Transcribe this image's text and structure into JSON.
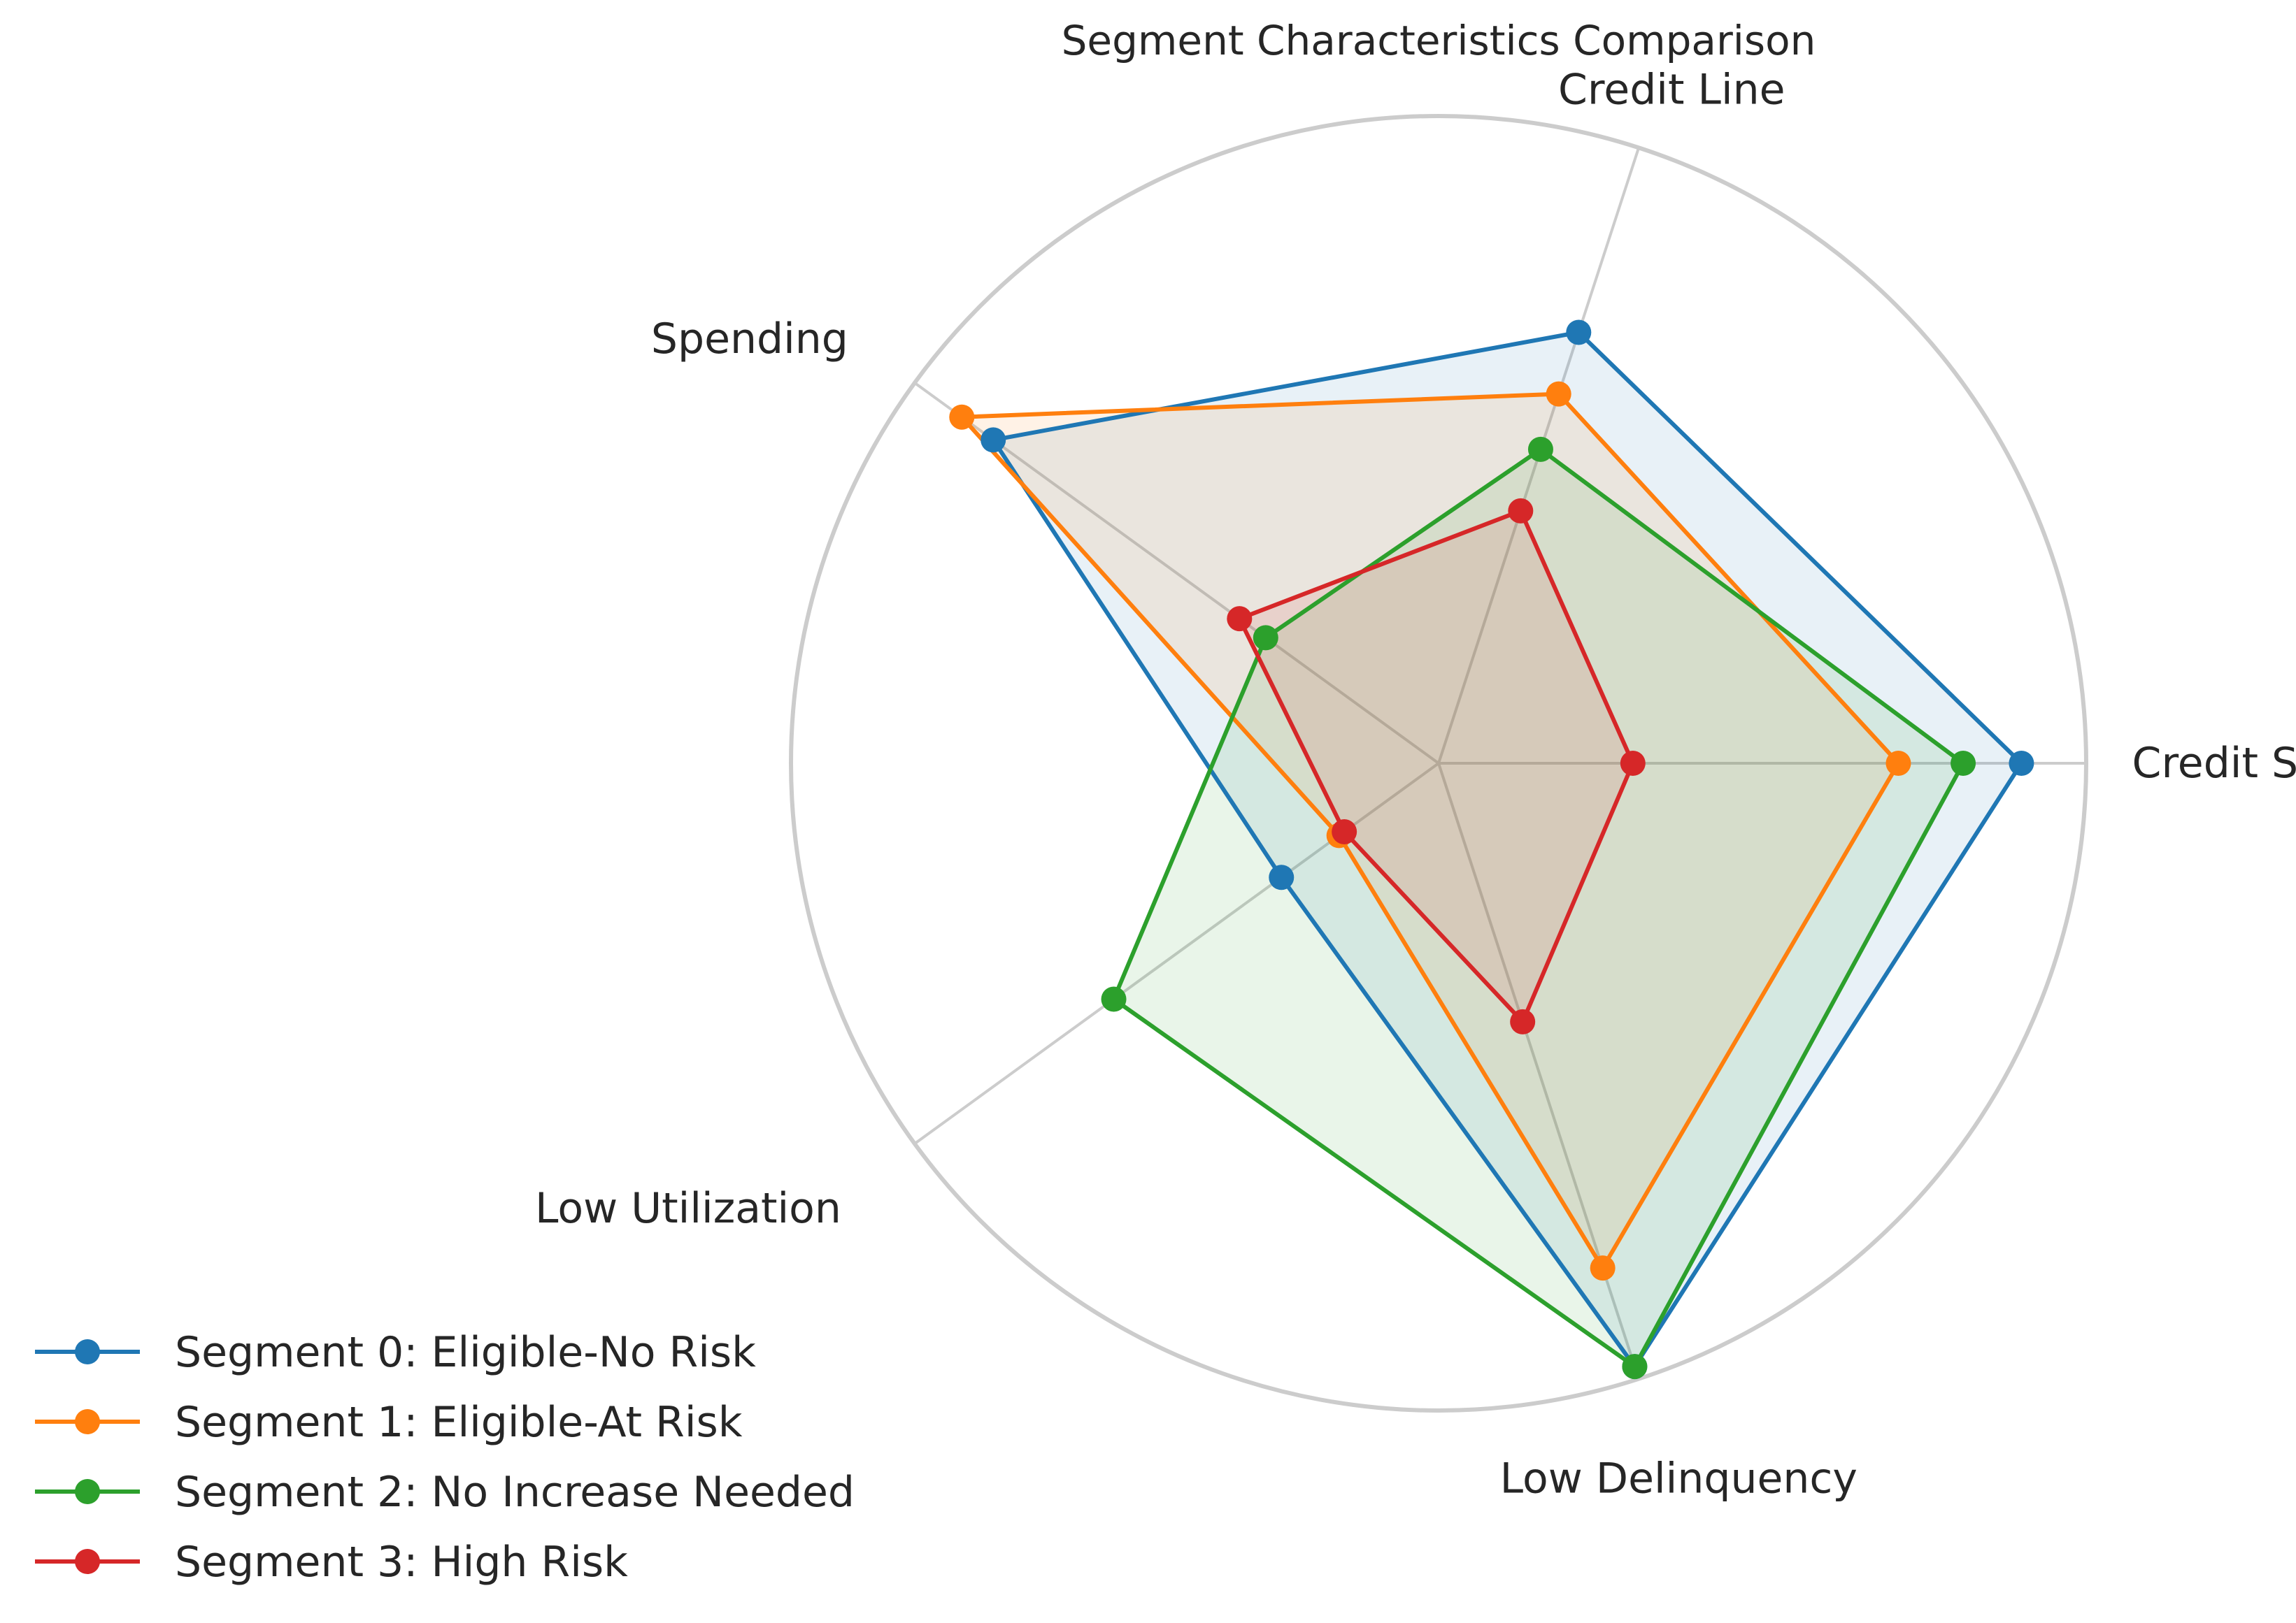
{
  "chart_data": {
    "type": "radar",
    "title": "Segment Characteristics Comparison",
    "axes": [
      "Credit Score",
      "Credit Line",
      "Spending",
      "Low Utilization",
      "Low Delinquency"
    ],
    "rmax": 1.0,
    "grid": true,
    "legend_position": "bottom-left",
    "series": [
      {
        "name": "Segment 0: Eligible-No Risk",
        "color": "#1f77b4",
        "values": [
          0.9,
          0.7,
          0.85,
          0.3,
          0.98
        ]
      },
      {
        "name": "Segment 1: Eligible-At Risk",
        "color": "#ff7f0e",
        "values": [
          0.71,
          0.6,
          0.91,
          0.19,
          0.82
        ]
      },
      {
        "name": "Segment 2: No Increase Needed",
        "color": "#2ca02c",
        "values": [
          0.81,
          0.51,
          0.33,
          0.62,
          0.98
        ]
      },
      {
        "name": "Segment 3: High Risk",
        "color": "#d62728",
        "values": [
          0.3,
          0.41,
          0.38,
          0.18,
          0.42
        ]
      }
    ]
  }
}
